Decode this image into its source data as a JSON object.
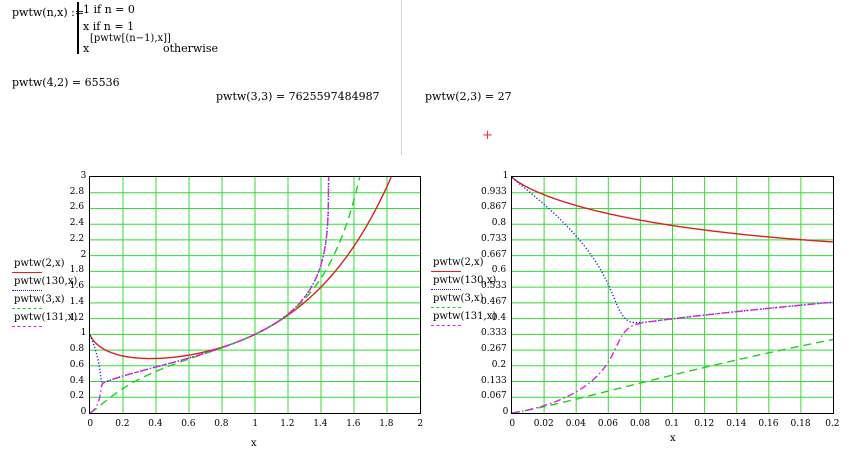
{
  "definition": {
    "lhs": "pwtw(n,x) :=",
    "case1": "1  if  n = 0",
    "case2": "x  if  n = 1",
    "case3_base": "x",
    "case3_exp": "[pwtw[(n−1),x]]",
    "case3_cond": "otherwise"
  },
  "results": {
    "r1": "pwtw(4,2) = 65536",
    "r2": "pwtw(3,3) = 7625597484987",
    "r3": "pwtw(2,3) = 27"
  },
  "cursor": "+",
  "plots": {
    "left": {
      "xlabel": "x",
      "xrange": [
        0,
        2
      ],
      "yrange": [
        0,
        3
      ],
      "xticks": [
        "0",
        "0.2",
        "0.4",
        "0.6",
        "0.8",
        "1",
        "1.2",
        "1.4",
        "1.6",
        "1.8",
        "2"
      ],
      "yticks": [
        "0",
        "0.2",
        "0.4",
        "0.6",
        "0.8",
        "1",
        "1.2",
        "1.4",
        "1.6",
        "1.8",
        "2",
        "2.2",
        "2.4",
        "2.6",
        "2.8",
        "3"
      ]
    },
    "right": {
      "xlabel": "x",
      "xrange": [
        0,
        0.2
      ],
      "yrange": [
        0,
        1
      ],
      "xticks": [
        "0",
        "0.02",
        "0.04",
        "0.06",
        "0.08",
        "0.1",
        "0.12",
        "0.14",
        "0.16",
        "0.18",
        "0.2"
      ],
      "yticks": [
        "0",
        "0.067",
        "0.133",
        "0.2",
        "0.267",
        "0.333",
        "0.4",
        "0.467",
        "0.533",
        "0.6",
        "0.667",
        "0.733",
        "0.8",
        "0.867",
        "0.933",
        "1"
      ]
    }
  },
  "legend": [
    {
      "label": "pwtw(2,x)",
      "color": "#e02020",
      "dash": "none"
    },
    {
      "label": "pwtw(130,x)",
      "color": "#2020e0",
      "dash": "dotted"
    },
    {
      "label": "pwtw(3,x)",
      "color": "#20d020",
      "dash": "dashed"
    },
    {
      "label": "pwtw(131,x)",
      "color": "#e020e0",
      "dash": "dashdot"
    }
  ],
  "grid_color": "#33dd33"
}
